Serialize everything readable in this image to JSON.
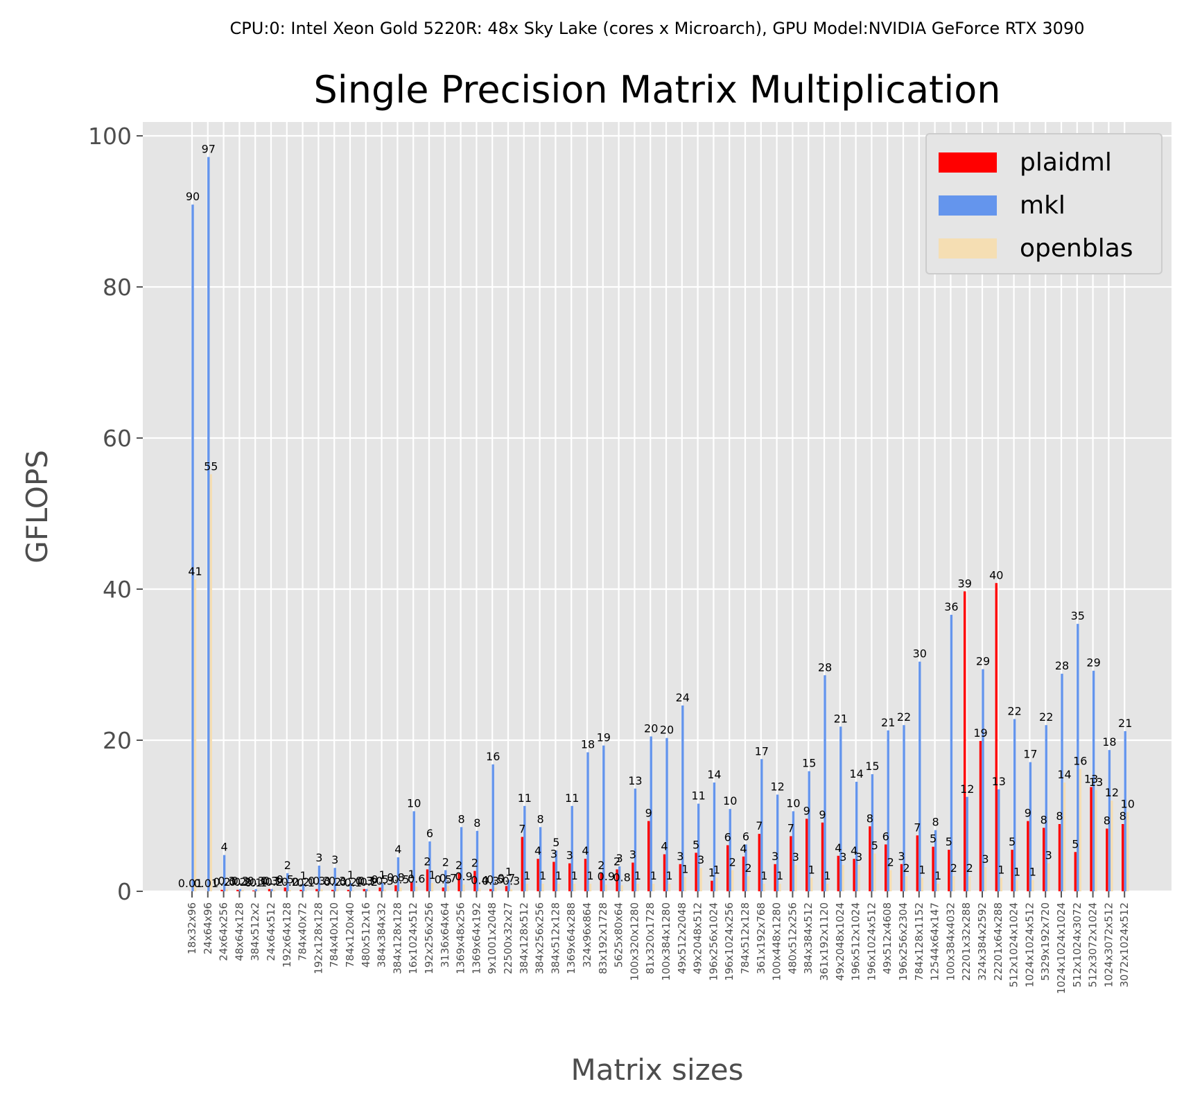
{
  "chart_data": {
    "type": "bar",
    "suptitle": "CPU:0: Intel Xeon Gold 5220R: 48x Sky Lake (cores x Microarch), GPU Model:NVIDIA GeForce RTX 3090",
    "title": "Single Precision Matrix Multiplication",
    "xlabel": "Matrix sizes",
    "ylabel": "GFLOPS",
    "ylim": [
      0,
      103
    ],
    "yticks": [
      0,
      20,
      40,
      60,
      80,
      100
    ],
    "grid": true,
    "legend_position": "top-right",
    "categories": [
      "18x32x96",
      "24x64x96",
      "24x64x256",
      "48x64x128",
      "384x512x2",
      "24x64x512",
      "192x64x128",
      "784x40x72",
      "192x128x128",
      "784x40x120",
      "784x120x40",
      "480x512x16",
      "384x384x32",
      "384x128x128",
      "16x1024x512",
      "192x256x256",
      "3136x64x64",
      "1369x48x256",
      "1369x64x192",
      "9x1001x2048",
      "22500x32x27",
      "384x128x512",
      "384x256x256",
      "384x512x128",
      "1369x64x288",
      "324x96x864",
      "83x192x1728",
      "5625x80x64",
      "100x320x1280",
      "81x320x1728",
      "100x384x1280",
      "49x512x2048",
      "49x2048x512",
      "196x256x1024",
      "196x1024x256",
      "784x512x128",
      "361x192x768",
      "100x448x1280",
      "480x512x256",
      "384x384x512",
      "361x192x1120",
      "49x2048x1024",
      "196x512x1024",
      "196x1024x512",
      "49x512x4608",
      "196x256x2304",
      "784x128x1152",
      "12544x64x147",
      "100x384x4032",
      "22201x32x288",
      "324x384x2592",
      "22201x64x288",
      "512x1024x1024",
      "1024x1024x512",
      "5329x192x720",
      "1024x1024x1024",
      "512x1024x3072",
      "512x3072x1024",
      "1024x3072x512",
      "3072x1024x512"
    ],
    "series": [
      {
        "name": "plaidml",
        "color": "#ff0000",
        "values": [
          0.01,
          0.01,
          0.2,
          0.2,
          0.1,
          0.3,
          0.5,
          0.2,
          0.3,
          0.2,
          0.2,
          0.3,
          0.5,
          0.8,
          1.2,
          2.9,
          0.5,
          2.4,
          2.7,
          0.3,
          0.7,
          7.2,
          4.3,
          3.9,
          3.7,
          4.3,
          2.4,
          2.9,
          3.8,
          9.3,
          4.9,
          3.6,
          5.1,
          1.4,
          6.1,
          4.6,
          7.6,
          3.6,
          7.3,
          9.6,
          9.1,
          4.7,
          4.3,
          8.6,
          6.2,
          3.6,
          7.4,
          5.9,
          5.5,
          39.7,
          19.9,
          40.8,
          5.5,
          9.3,
          8.4,
          8.9,
          5.2,
          13.8,
          8.3,
          8.9
        ]
      },
      {
        "name": "mkl",
        "color": "#6495ed",
        "values": [
          90.9,
          97.2,
          4.8,
          0.3,
          0.3,
          0.3,
          2.4,
          1.0,
          3.4,
          3.1,
          1.1,
          0.3,
          1.1,
          4.5,
          10.6,
          6.6,
          2.8,
          8.5,
          8.0,
          16.8,
          1.5,
          11.3,
          8.5,
          5.4,
          11.3,
          18.4,
          19.3,
          3.3,
          13.6,
          20.5,
          20.3,
          24.6,
          11.6,
          14.4,
          10.9,
          6.2,
          17.5,
          12.8,
          10.6,
          15.9,
          28.6,
          21.8,
          14.5,
          15.5,
          21.3,
          22.0,
          30.4,
          8.1,
          36.6,
          12.5,
          29.4,
          13.5,
          22.8,
          17.1,
          22.0,
          28.8,
          35.4,
          29.2,
          18.7,
          21.2
        ]
      },
      {
        "name": "openblas",
        "color": "#f5deb3",
        "values": [
          41.3,
          55.2,
          0.3,
          0.2,
          0.1,
          0.2,
          0.2,
          0.1,
          0.3,
          0.3,
          0.1,
          0.2,
          0.3,
          0.5,
          0.6,
          1.1,
          0.7,
          0.9,
          0.4,
          0.5,
          0.3,
          1.0,
          1.0,
          1.0,
          1.0,
          1.0,
          0.9,
          0.8,
          1.0,
          1.0,
          1.0,
          1.9,
          3.1,
          1.8,
          2.8,
          2.0,
          1.0,
          1.0,
          3.5,
          1.8,
          1.0,
          3.5,
          3.5,
          5.0,
          2.8,
          2.0,
          1.8,
          1.0,
          2.0,
          2.0,
          3.2,
          1.8,
          1.5,
          1.5,
          3.7,
          14.4,
          16.2,
          13.4,
          12.0,
          10.5
        ]
      }
    ]
  }
}
